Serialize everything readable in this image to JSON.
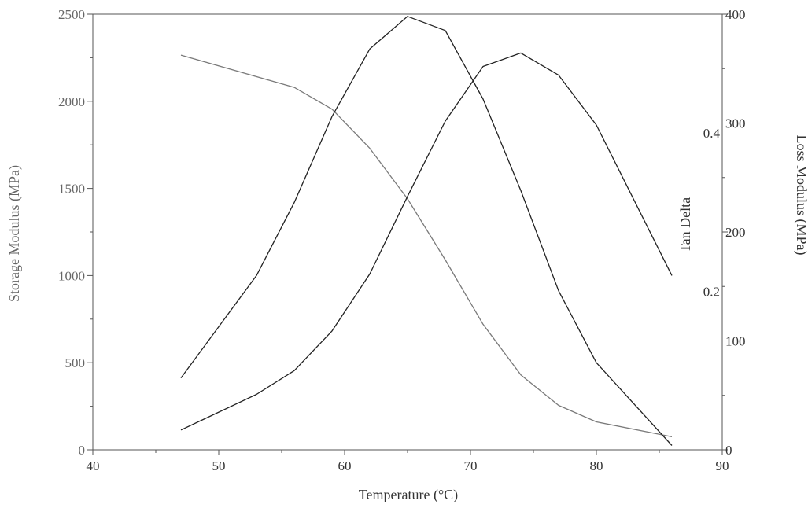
{
  "chart_data": {
    "type": "line",
    "xlabel": "Temperature (°C)",
    "xlim": [
      40,
      90
    ],
    "xticks": [
      40,
      50,
      60,
      70,
      80,
      90
    ],
    "axes": {
      "left": {
        "label": "Storage Modulus (MPa)",
        "lim": [
          0,
          2500
        ],
        "ticks": [
          0,
          500,
          1000,
          1500,
          2000,
          2500
        ],
        "color": "#666666"
      },
      "right_inner": {
        "label": "Tan Delta",
        "lim": [
          0,
          0.55
        ],
        "ticks": [
          0.2,
          0.4
        ],
        "color": "#333333"
      },
      "right_outer": {
        "label": "Loss Modulus (MPa)",
        "lim": [
          0,
          400
        ],
        "ticks": [
          0,
          100,
          200,
          300,
          400
        ],
        "color": "#333333"
      }
    },
    "grid": false,
    "series": [
      {
        "axis": "left",
        "color": "#7a7a7a",
        "points": [
          [
            47,
            2265
          ],
          [
            56,
            2080
          ],
          [
            59,
            1955
          ],
          [
            62,
            1730
          ],
          [
            65,
            1440
          ],
          [
            68,
            1090
          ],
          [
            71,
            720
          ],
          [
            74,
            430
          ],
          [
            77,
            255
          ],
          [
            80,
            160
          ],
          [
            86,
            75
          ]
        ]
      },
      {
        "axis": "right_outer",
        "color": "#222222",
        "points": [
          [
            47,
            66
          ],
          [
            53,
            160
          ],
          [
            56,
            227
          ],
          [
            59,
            306
          ],
          [
            62,
            368
          ],
          [
            65,
            398
          ],
          [
            68,
            385
          ],
          [
            71,
            322
          ],
          [
            74,
            238
          ],
          [
            77,
            146
          ],
          [
            80,
            80
          ],
          [
            86,
            4
          ]
        ]
      },
      {
        "axis": "right_inner",
        "color": "#222222",
        "points": [
          [
            47,
            0.025
          ],
          [
            53,
            0.07
          ],
          [
            56,
            0.1
          ],
          [
            59,
            0.15
          ],
          [
            62,
            0.222
          ],
          [
            65,
            0.32
          ],
          [
            68,
            0.415
          ],
          [
            71,
            0.484
          ],
          [
            74,
            0.501
          ],
          [
            77,
            0.473
          ],
          [
            80,
            0.41
          ],
          [
            86,
            0.22
          ]
        ]
      }
    ]
  }
}
